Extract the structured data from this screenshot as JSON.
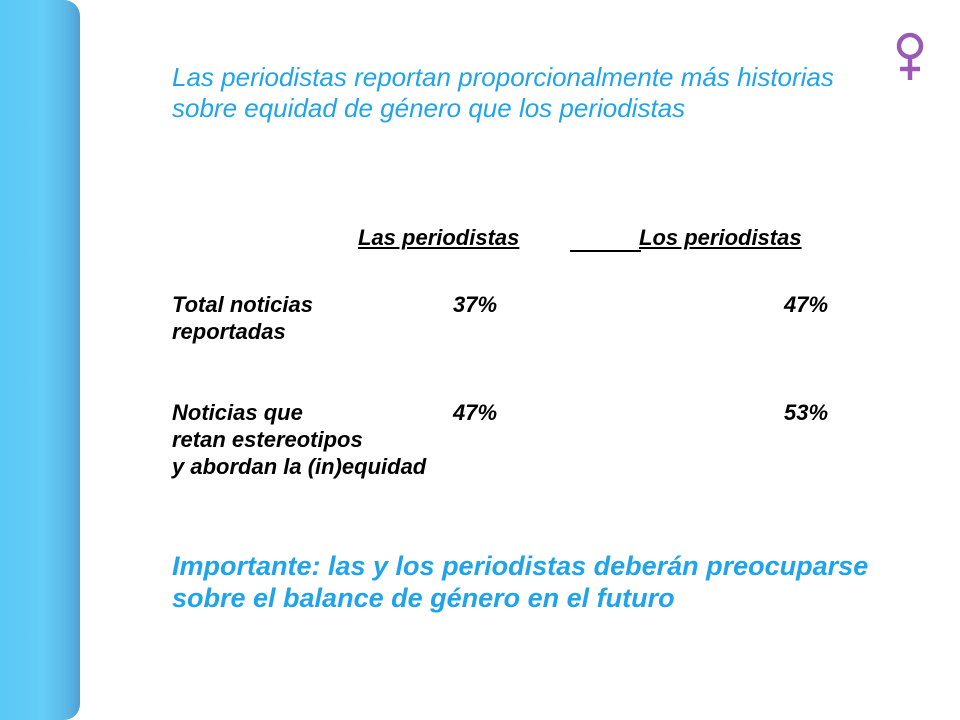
{
  "title": "Las periodistas reportan proporcionalmente más historias sobre equidad de género que los periodistas",
  "table": {
    "columns": [
      "Las periodistas",
      "Los periodistas"
    ],
    "rows": [
      {
        "label": "Total noticias\nreportadas",
        "values": [
          "37%",
          "47%"
        ]
      },
      {
        "label": "Noticias que\nretan estereotipos\ny abordan la (in)equidad",
        "values": [
          "47%",
          "53%"
        ]
      }
    ]
  },
  "note": "Importante: las y los periodistas deberán preocuparse sobre el balance de género en el futuro",
  "icon": "female-symbol-icon",
  "colors": {
    "accent": "#1fa3e9",
    "sidebar": "#64ccf7",
    "icon": "#9b59b6"
  }
}
